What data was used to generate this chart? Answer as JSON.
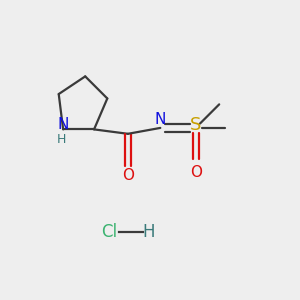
{
  "background_color": "#eeeeee",
  "bond_color": "#3a3a3a",
  "N_color": "#1010dd",
  "O_color": "#dd1010",
  "S_color": "#c8a000",
  "Cl_color": "#3cb371",
  "H_color": "#3a7a7a",
  "font_size": 11,
  "sub_font_size": 9,
  "hcl_font_size": 12,
  "lw": 1.6,
  "figsize": [
    3.0,
    3.0
  ],
  "dpi": 100,
  "xlim": [
    0,
    10
  ],
  "ylim": [
    0,
    10
  ]
}
